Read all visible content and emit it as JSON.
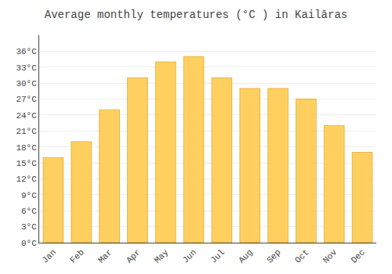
{
  "chart_data": {
    "type": "bar",
    "title": "Average monthly temperatures (°C ) in Kailāras",
    "categories": [
      "Jan",
      "Feb",
      "Mar",
      "Apr",
      "May",
      "Jun",
      "Jul",
      "Aug",
      "Sep",
      "Oct",
      "Nov",
      "Dec"
    ],
    "values": [
      16,
      19,
      25,
      31,
      34,
      35,
      31,
      29,
      29,
      27,
      22,
      17
    ],
    "color": "#FFD060",
    "ylim": [
      0,
      39
    ],
    "yticks": [
      {
        "value": 0,
        "label": "0°C"
      },
      {
        "value": 3,
        "label": "3°C"
      },
      {
        "value": 6,
        "label": "6°C"
      },
      {
        "value": 9,
        "label": "9°C"
      },
      {
        "value": 12,
        "label": "12°C"
      },
      {
        "value": 15,
        "label": "15°C"
      },
      {
        "value": 18,
        "label": "18°C"
      },
      {
        "value": 21,
        "label": "21°C"
      },
      {
        "value": 24,
        "label": "24°C"
      },
      {
        "value": 27,
        "label": "27°C"
      },
      {
        "value": 30,
        "label": "30°C"
      },
      {
        "value": 33,
        "label": "33°C"
      },
      {
        "value": 36,
        "label": "36°C"
      }
    ],
    "grid": true
  }
}
